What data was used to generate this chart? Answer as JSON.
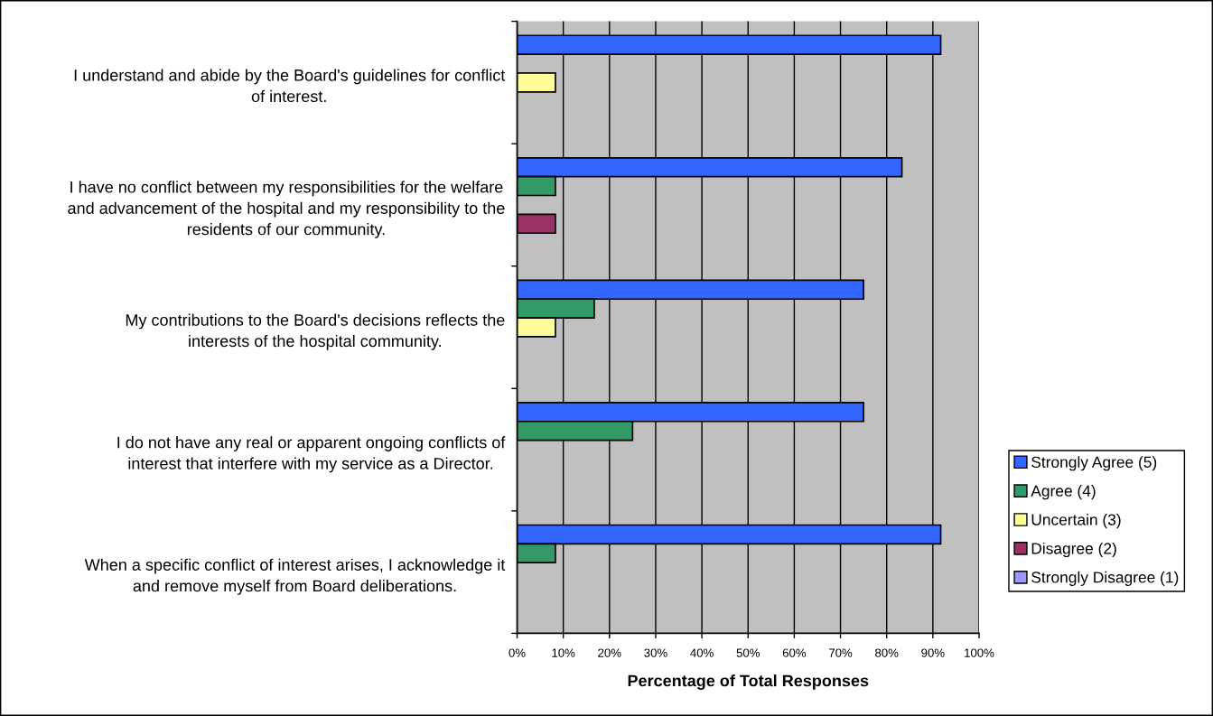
{
  "chart_data": {
    "type": "bar",
    "orientation": "horizontal",
    "categories": [
      "I understand and abide by the Board's guidelines for conflict\nof interest.",
      "I have no conflict between my responsibilities for the welfare\nand advancement of the hospital and my responsibility to the\nresidents of our community.",
      "My contributions to the Board's decisions reflects the\ninterests of the hospital community.",
      "I do not have any real or apparent ongoing conflicts of\ninterest that interfere with my service as a Director.",
      "When a specific conflict of interest arises, I acknowledge it\nand remove myself from Board deliberations."
    ],
    "series": [
      {
        "name": "Strongly Agree (5)",
        "color": "#3366ff",
        "values": [
          91.7,
          83.3,
          75.0,
          75.0,
          91.7
        ]
      },
      {
        "name": "Agree (4)",
        "color": "#339966",
        "values": [
          0,
          8.3,
          16.7,
          25.0,
          8.3
        ]
      },
      {
        "name": "Uncertain (3)",
        "color": "#ffff99",
        "values": [
          8.3,
          0,
          8.3,
          0,
          0
        ]
      },
      {
        "name": "Disagree (2)",
        "color": "#993366",
        "values": [
          0,
          8.3,
          0,
          0,
          0
        ]
      },
      {
        "name": "Strongly Disagree (1)",
        "color": "#9999ff",
        "values": [
          0,
          0,
          0,
          0,
          0
        ]
      }
    ],
    "xlabel": "Percentage of Total Responses",
    "xlim": [
      0,
      100
    ],
    "xticks": [
      {
        "value": 0,
        "label": "0%"
      },
      {
        "value": 10,
        "label": "10%"
      },
      {
        "value": 20,
        "label": "20%"
      },
      {
        "value": 30,
        "label": "30%"
      },
      {
        "value": 40,
        "label": "40%"
      },
      {
        "value": 50,
        "label": "50%"
      },
      {
        "value": 60,
        "label": "60%"
      },
      {
        "value": 70,
        "label": "70%"
      },
      {
        "value": 80,
        "label": "80%"
      },
      {
        "value": 90,
        "label": "90%"
      },
      {
        "value": 100,
        "label": "100%"
      }
    ],
    "grid": "x",
    "legend": "right"
  }
}
